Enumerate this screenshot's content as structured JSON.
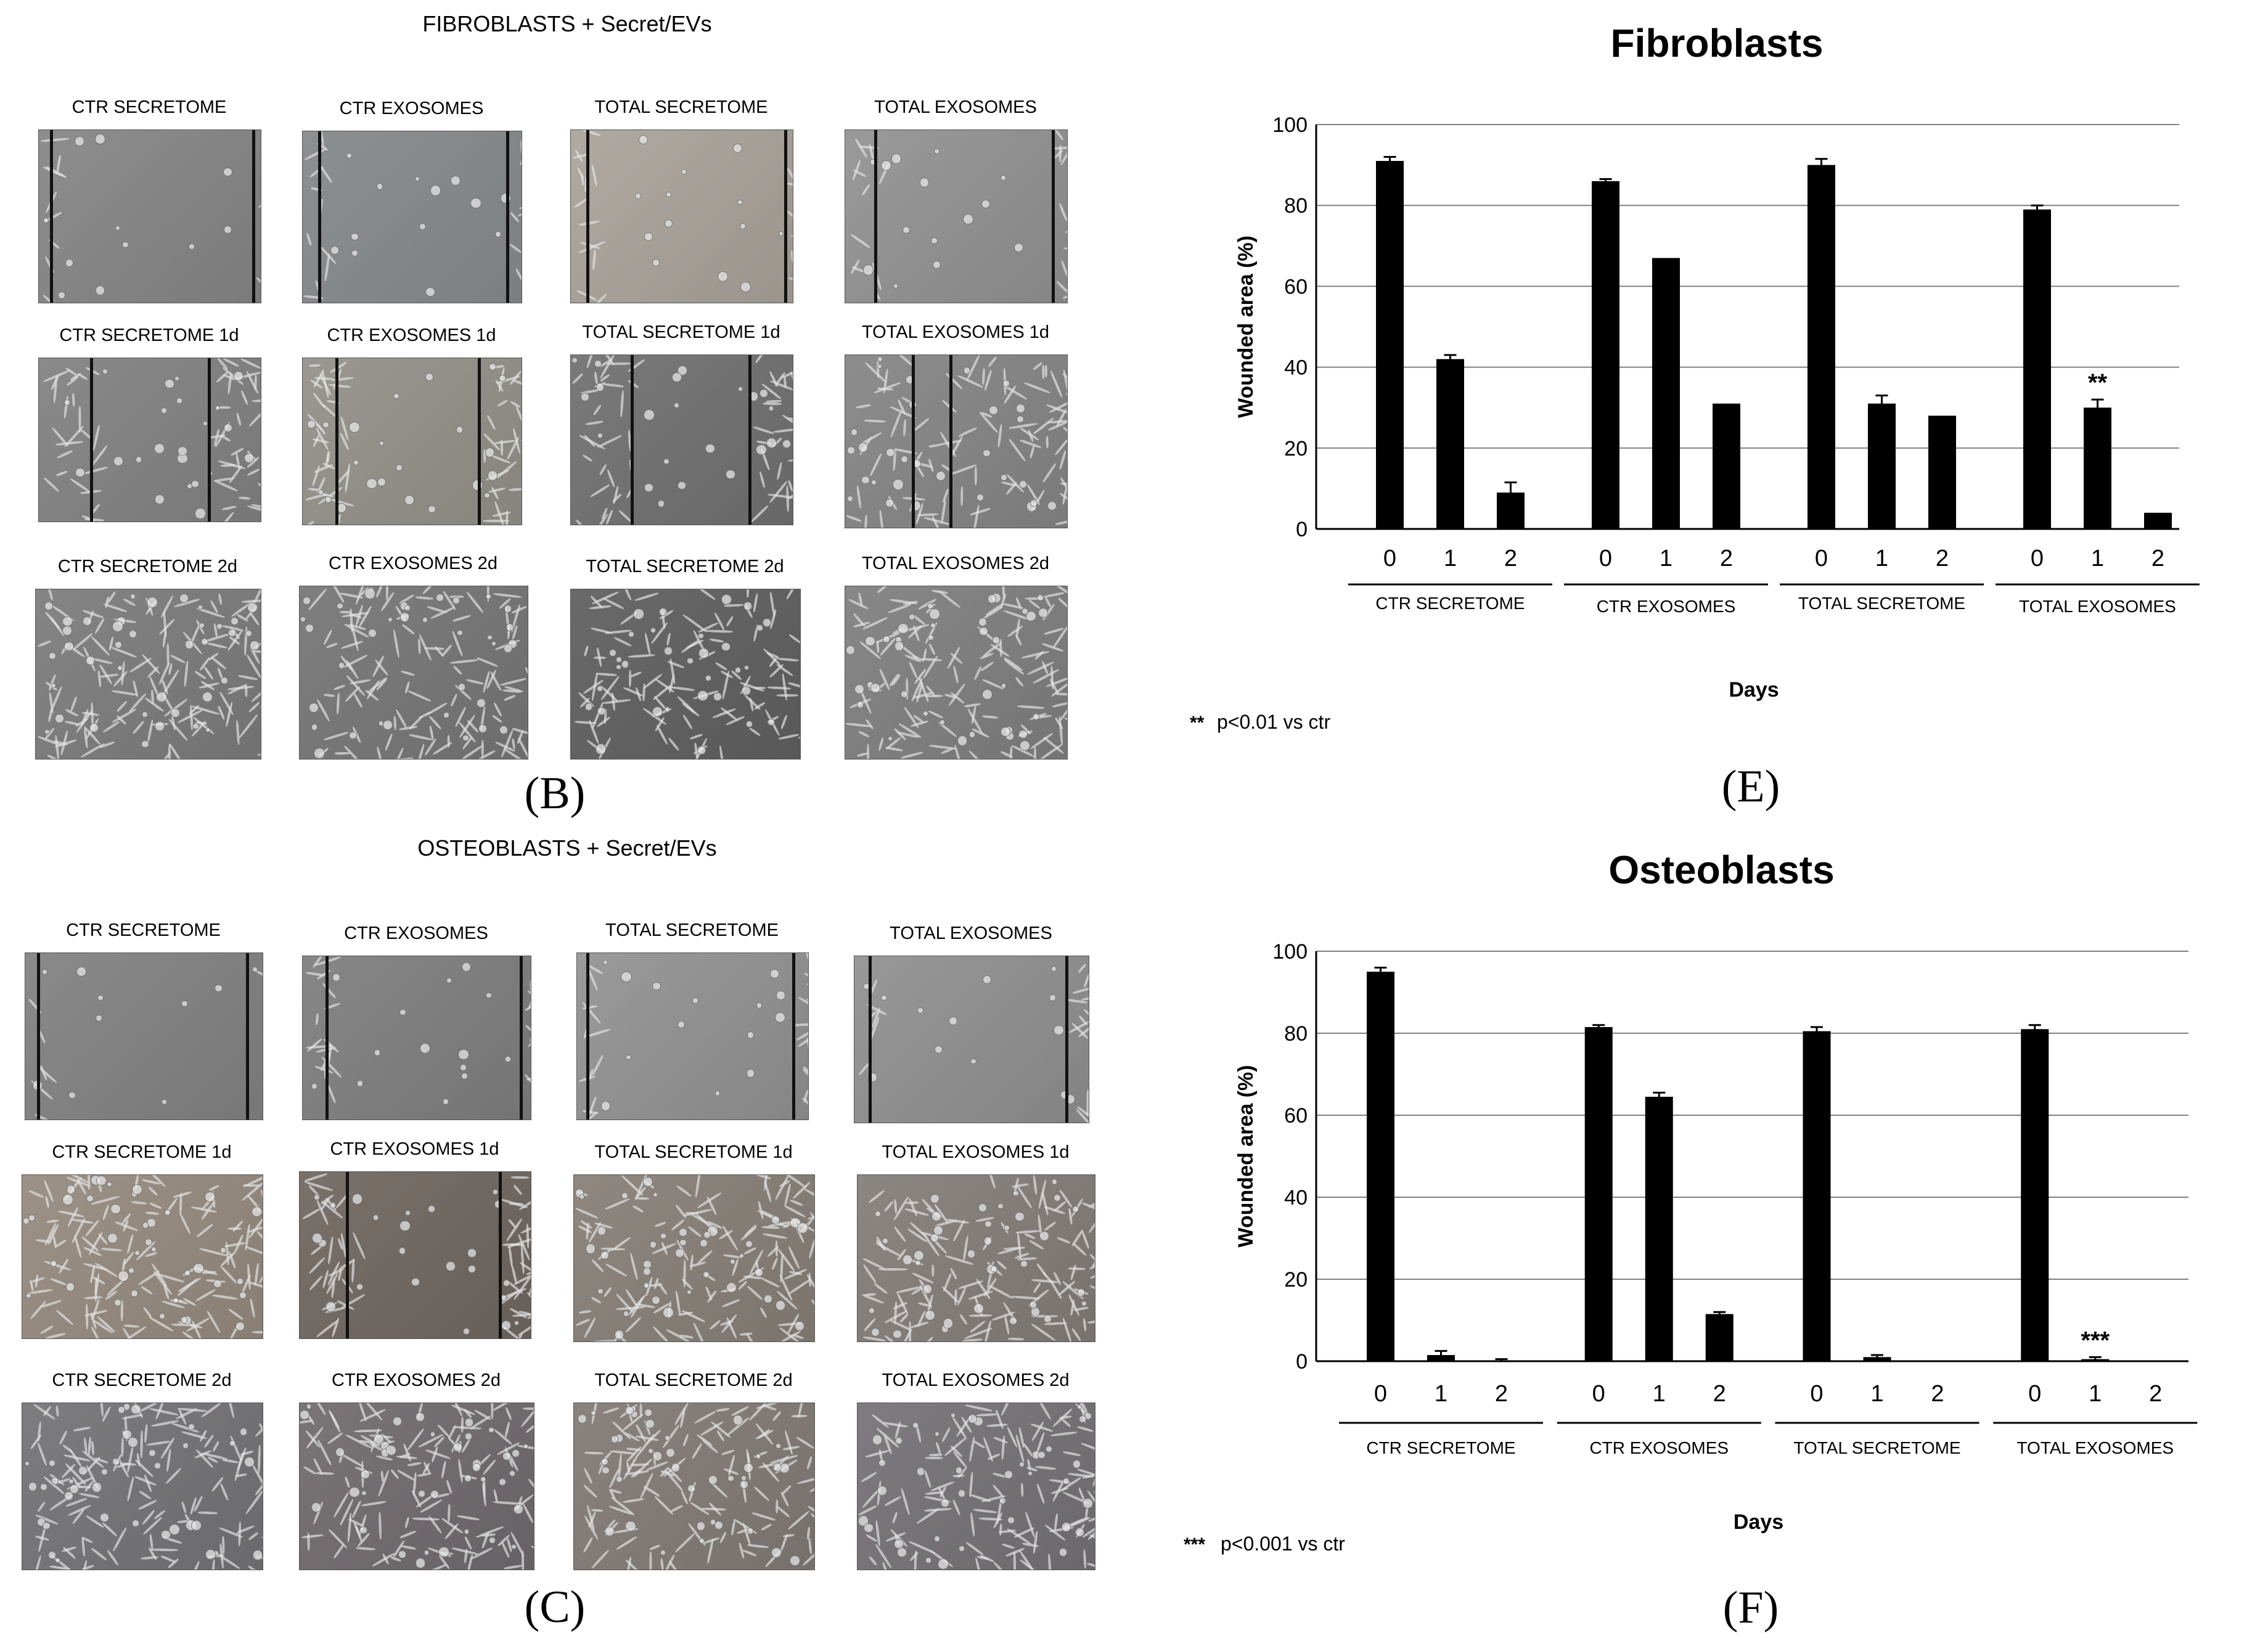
{
  "top": {
    "section_title": "FIBROBLASTS + Secret/EVs",
    "panel_letter": "(B)",
    "rows": [
      [
        "CTR SECRETOME",
        "CTR EXOSOMES",
        "TOTAL SECRETOME",
        "TOTAL EXOSOMES"
      ],
      [
        "CTR SECRETOME 1d",
        "CTR EXOSOMES 1d",
        "TOTAL SECRETOME 1d",
        "TOTAL EXOSOMES 1d"
      ],
      [
        "CTR SECRETOME 2d",
        "CTR EXOSOMES 2d",
        "TOTAL SECRETOME 2d",
        "TOTAL EXOSOMES 2d"
      ]
    ]
  },
  "bottom": {
    "section_title": "OSTEOBLASTS + Secret/EVs",
    "panel_letter": "(C)",
    "rows": [
      [
        "CTR SECRETOME",
        "CTR EXOSOMES",
        "TOTAL SECRETOME",
        "TOTAL EXOSOMES"
      ],
      [
        "CTR SECRETOME 1d",
        "CTR EXOSOMES 1d",
        "TOTAL SECRETOME 1d",
        "TOTAL EXOSOMES 1d"
      ],
      [
        "CTR SECRETOME 2d",
        "CTR EXOSOMES 2d",
        "TOTAL SECRETOME 2d",
        "TOTAL EXOSOMES 2d"
      ]
    ]
  },
  "colors": {
    "bar": "#000000",
    "grid": "#808080"
  },
  "chart_data": [
    {
      "type": "bar",
      "title": "Fibroblasts",
      "panel_letter": "(E)",
      "ylabel": "Wounded area (%)",
      "xlabel": "Days",
      "ylim": [
        0,
        100
      ],
      "yticks": [
        "0",
        "20",
        "40",
        "60",
        "80",
        "100"
      ],
      "groups": [
        "CTR SECRETOME",
        "CTR EXOSOMES",
        "TOTAL SECRETOME",
        "TOTAL EXOSOMES"
      ],
      "categories": [
        "0",
        "1",
        "2"
      ],
      "values": [
        [
          91,
          42,
          9
        ],
        [
          86,
          67,
          31
        ],
        [
          90,
          31,
          28
        ],
        [
          79,
          30,
          4
        ]
      ],
      "errors": [
        [
          1,
          1,
          2.5
        ],
        [
          0.5,
          0,
          0
        ],
        [
          1.5,
          2,
          0
        ],
        [
          1,
          2,
          0
        ]
      ],
      "significance": [
        {
          "group": 3,
          "bar": 1,
          "label": "**"
        }
      ],
      "footnote_marker": "**",
      "footnote": "p<0.01 vs ctr"
    },
    {
      "type": "bar",
      "title": "Osteoblasts",
      "panel_letter": "(F)",
      "ylabel": "Wounded area (%)",
      "xlabel": "Days",
      "ylim": [
        0,
        100
      ],
      "yticks": [
        "0",
        "20",
        "40",
        "60",
        "80",
        "100"
      ],
      "groups": [
        "CTR SECRETOME",
        "CTR EXOSOMES",
        "TOTAL SECRETOME",
        "TOTAL EXOSOMES"
      ],
      "categories": [
        "0",
        "1",
        "2"
      ],
      "values": [
        [
          95,
          1.5,
          0
        ],
        [
          81.5,
          64.5,
          11.5
        ],
        [
          80.5,
          1,
          0
        ],
        [
          81,
          0.5,
          0
        ]
      ],
      "errors": [
        [
          1,
          1,
          0.5
        ],
        [
          0.5,
          1,
          0.5
        ],
        [
          1,
          0.5,
          0
        ],
        [
          1,
          0.5,
          0
        ]
      ],
      "significance": [
        {
          "group": 3,
          "bar": 1,
          "label": "***"
        }
      ],
      "footnote_marker": "***",
      "footnote": "p<0.001 vs ctr"
    }
  ]
}
